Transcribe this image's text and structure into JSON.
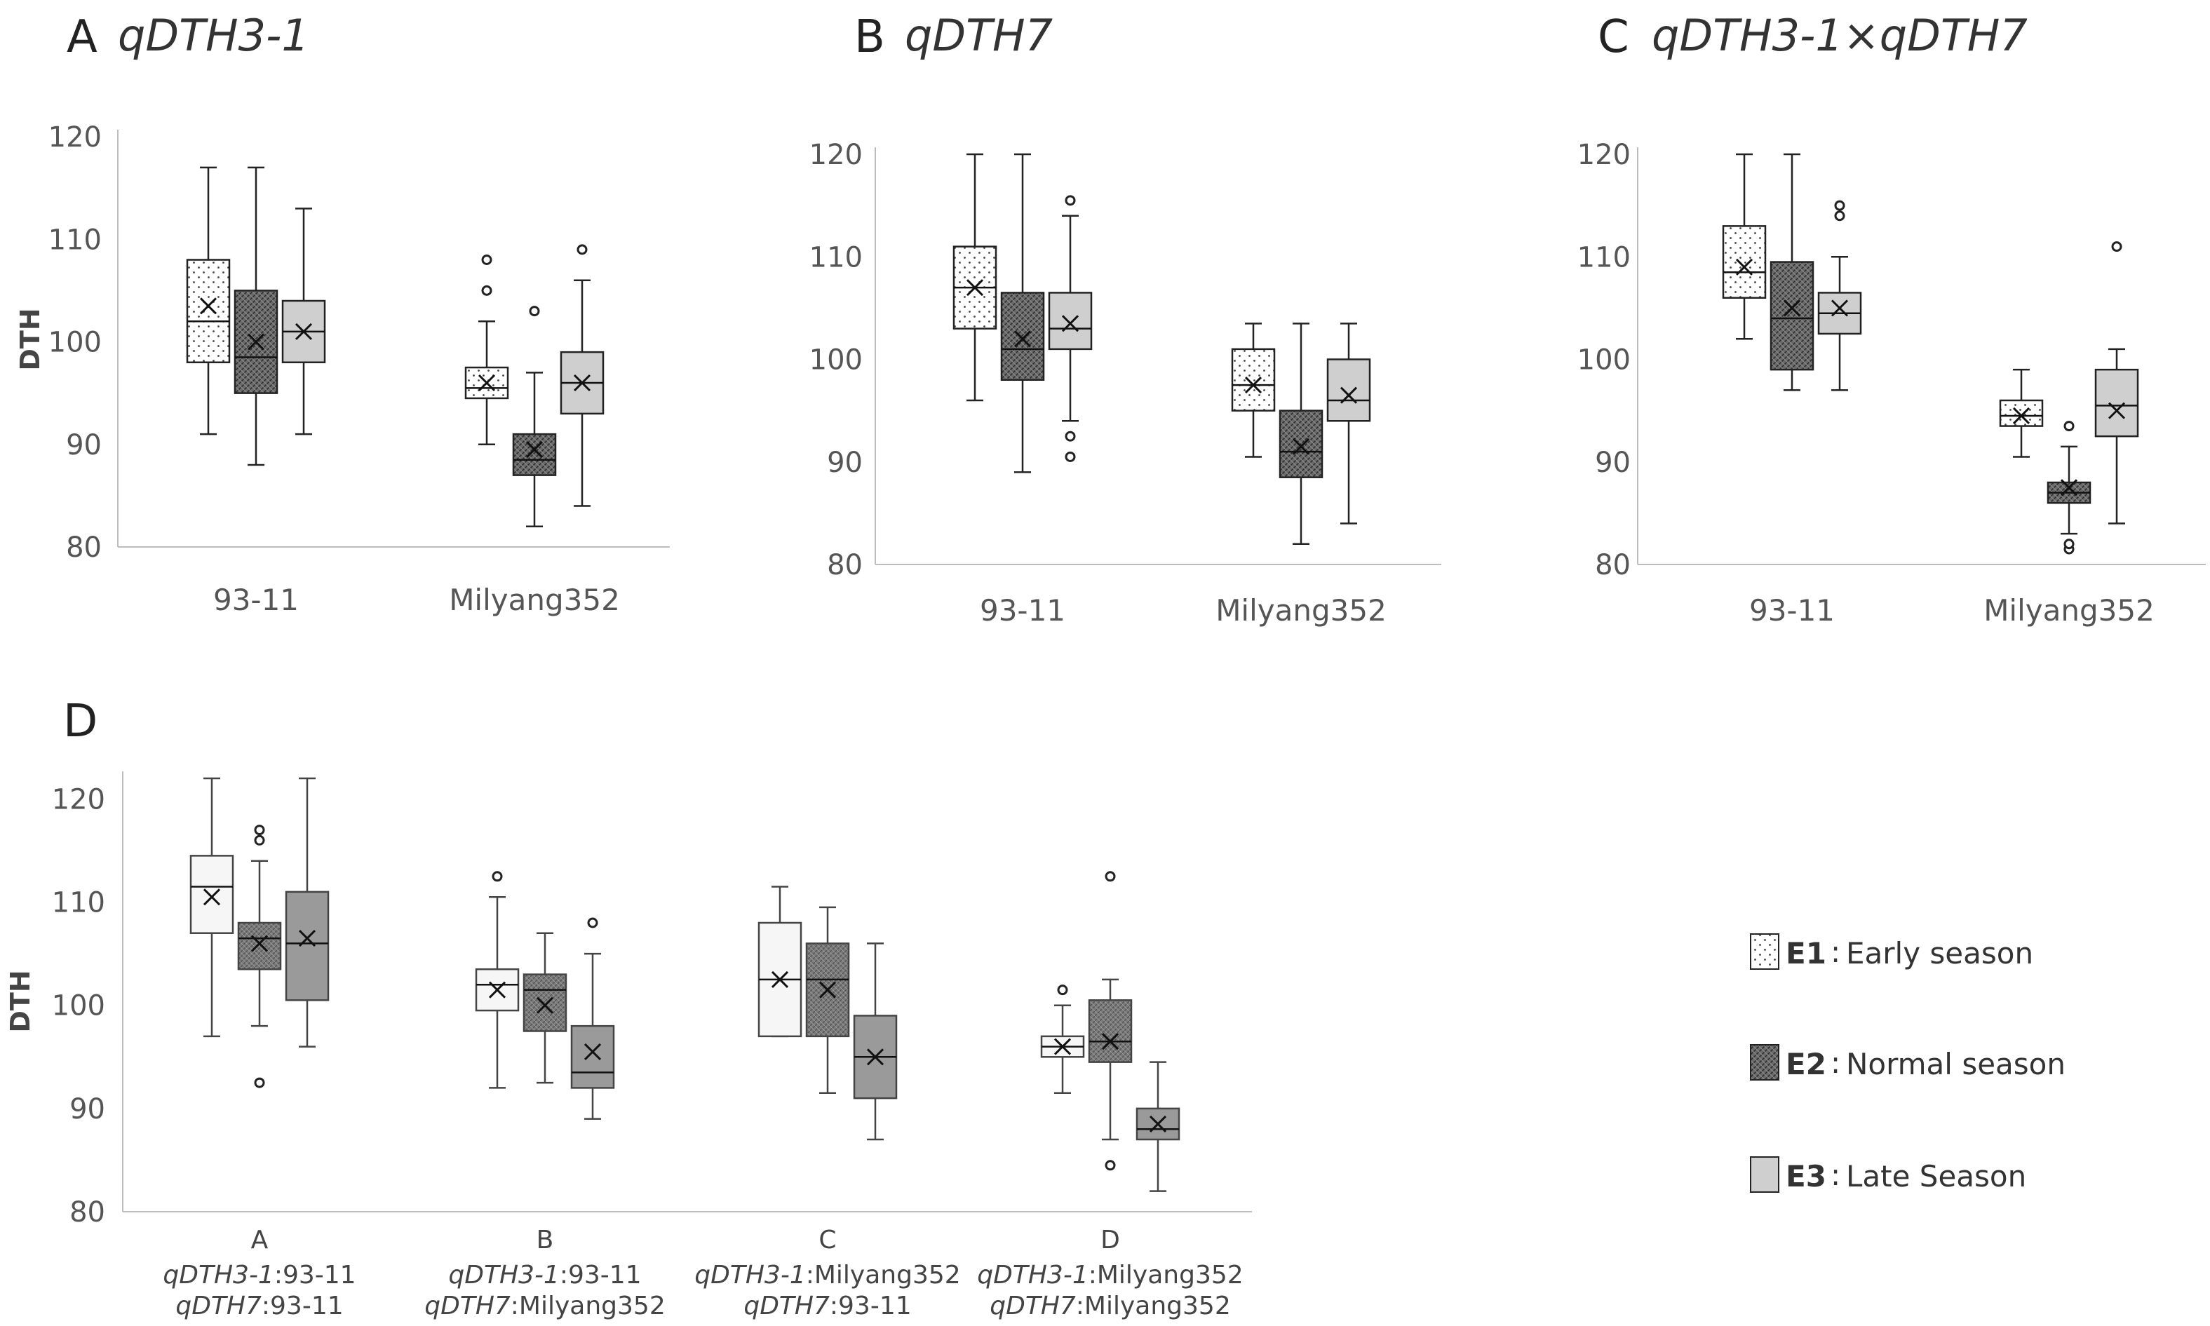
{
  "legend": [
    {
      "code": "E1",
      "sep": ":",
      "label": "Early season"
    },
    {
      "code": "E2",
      "sep": ":",
      "label": "Normal season"
    },
    {
      "code": "E3",
      "sep": ":",
      "label": "Late Season"
    }
  ],
  "chart_data": [
    {
      "type": "box",
      "panel": "A",
      "title": "qDTH3-1",
      "ylabel": "DTH",
      "ylim": [
        80,
        120
      ],
      "yticks": [
        80,
        90,
        100,
        110,
        120
      ],
      "grid": false,
      "categories": [
        "93-11",
        "Milyang352"
      ],
      "series": [
        {
          "name": "E1",
          "boxes": [
            {
              "min": 91,
              "q1": 98,
              "median": 102,
              "q3": 108,
              "max": 117,
              "mean": 103.5,
              "outliers": []
            },
            {
              "min": 90,
              "q1": 94.5,
              "median": 95.5,
              "q3": 97.5,
              "max": 102,
              "mean": 96,
              "outliers": [
                105,
                108
              ]
            }
          ]
        },
        {
          "name": "E2",
          "boxes": [
            {
              "min": 88,
              "q1": 95,
              "median": 98.5,
              "q3": 105,
              "max": 117,
              "mean": 100,
              "outliers": []
            },
            {
              "min": 82,
              "q1": 87,
              "median": 88.5,
              "q3": 91,
              "max": 97,
              "mean": 89.5,
              "outliers": [
                103
              ]
            }
          ]
        },
        {
          "name": "E3",
          "boxes": [
            {
              "min": 91,
              "q1": 98,
              "median": 101,
              "q3": 104,
              "max": 113,
              "mean": 101,
              "outliers": []
            },
            {
              "min": 84,
              "q1": 93,
              "median": 96,
              "q3": 99,
              "max": 106,
              "mean": 96,
              "outliers": [
                109
              ]
            }
          ]
        }
      ]
    },
    {
      "type": "box",
      "panel": "B",
      "title": "qDTH7",
      "ylabel": "",
      "ylim": [
        80,
        120
      ],
      "yticks": [
        80,
        90,
        100,
        110,
        120
      ],
      "grid": false,
      "categories": [
        "93-11",
        "Milyang352"
      ],
      "series": [
        {
          "name": "E1",
          "boxes": [
            {
              "min": 96,
              "q1": 103,
              "median": 107,
              "q3": 111,
              "max": 120,
              "mean": 107,
              "outliers": []
            },
            {
              "min": 90.5,
              "q1": 95,
              "median": 97.5,
              "q3": 101,
              "max": 103.5,
              "mean": 97.5,
              "outliers": []
            }
          ]
        },
        {
          "name": "E2",
          "boxes": [
            {
              "min": 89,
              "q1": 98,
              "median": 101,
              "q3": 106.5,
              "max": 120,
              "mean": 102,
              "outliers": []
            },
            {
              "min": 82,
              "q1": 88.5,
              "median": 91,
              "q3": 95,
              "max": 103.5,
              "mean": 91.5,
              "outliers": []
            }
          ]
        },
        {
          "name": "E3",
          "boxes": [
            {
              "min": 94,
              "q1": 101,
              "median": 103,
              "q3": 106.5,
              "max": 114,
              "mean": 103.5,
              "outliers": [
                90.5,
                92.5,
                115.5
              ]
            },
            {
              "min": 84,
              "q1": 94,
              "median": 96,
              "q3": 100,
              "max": 103.5,
              "mean": 96.5,
              "outliers": []
            }
          ]
        }
      ]
    },
    {
      "type": "box",
      "panel": "C",
      "title": "qDTH3-1×qDTH7",
      "ylabel": "",
      "ylim": [
        80,
        120
      ],
      "yticks": [
        80,
        90,
        100,
        110,
        120
      ],
      "grid": false,
      "categories": [
        "93-11",
        "Milyang352"
      ],
      "series": [
        {
          "name": "E1",
          "boxes": [
            {
              "min": 102,
              "q1": 106,
              "median": 108.5,
              "q3": 113,
              "max": 120,
              "mean": 109,
              "outliers": []
            },
            {
              "min": 90.5,
              "q1": 93.5,
              "median": 94.5,
              "q3": 96,
              "max": 99,
              "mean": 94.5,
              "outliers": []
            }
          ]
        },
        {
          "name": "E2",
          "boxes": [
            {
              "min": 97,
              "q1": 99,
              "median": 104,
              "q3": 109.5,
              "max": 120,
              "mean": 105,
              "outliers": []
            },
            {
              "min": 83,
              "q1": 86,
              "median": 87,
              "q3": 88,
              "max": 91.5,
              "mean": 87.5,
              "outliers": [
                81.5,
                82,
                93.5
              ]
            }
          ]
        },
        {
          "name": "E3",
          "boxes": [
            {
              "min": 97,
              "q1": 102.5,
              "median": 104.5,
              "q3": 106.5,
              "max": 110,
              "mean": 105,
              "outliers": [
                114,
                115
              ]
            },
            {
              "min": 84,
              "q1": 92.5,
              "median": 95.5,
              "q3": 99,
              "max": 101,
              "mean": 95,
              "outliers": [
                111
              ]
            }
          ]
        }
      ]
    },
    {
      "type": "box",
      "panel": "D",
      "title": "",
      "ylabel": "DTH",
      "ylim": [
        80,
        122
      ],
      "yticks": [
        80,
        90,
        100,
        110,
        120
      ],
      "grid": false,
      "categories": [
        "A",
        "B",
        "C",
        "D"
      ],
      "category_sublabels": [
        [
          {
            "allele": "qDTH3-1",
            "source": ":93-11"
          },
          {
            "allele": "qDTH7",
            "source": ":93-11"
          }
        ],
        [
          {
            "allele": "qDTH3-1",
            "source": ":93-11"
          },
          {
            "allele": "qDTH7",
            "source": ":Milyang352"
          }
        ],
        [
          {
            "allele": "qDTH3-1",
            "source": ":Milyang352"
          },
          {
            "allele": "qDTH7",
            "source": ":93-11"
          }
        ],
        [
          {
            "allele": "qDTH3-1",
            "source": ":Milyang352"
          },
          {
            "allele": "qDTH7",
            "source": ":Milyang352"
          }
        ]
      ],
      "series": [
        {
          "name": "E1",
          "boxes": [
            {
              "min": 97,
              "q1": 107,
              "median": 111.5,
              "q3": 114.5,
              "max": 122,
              "mean": 110.5,
              "outliers": []
            },
            {
              "min": 92,
              "q1": 99.5,
              "median": 102,
              "q3": 103.5,
              "max": 110.5,
              "mean": 101.5,
              "outliers": [
                112.5
              ]
            },
            {
              "min": 97,
              "q1": 97,
              "median": 102.5,
              "q3": 108,
              "max": 111.5,
              "mean": 102.5,
              "outliers": []
            },
            {
              "min": 91.5,
              "q1": 95,
              "median": 96,
              "q3": 97,
              "max": 100,
              "mean": 96,
              "outliers": [
                101.5
              ]
            }
          ]
        },
        {
          "name": "E2",
          "boxes": [
            {
              "min": 98,
              "q1": 103.5,
              "median": 106.5,
              "q3": 108,
              "max": 114,
              "mean": 106,
              "outliers": [
                92.5,
                116,
                117
              ]
            },
            {
              "min": 92.5,
              "q1": 97.5,
              "median": 101.5,
              "q3": 103,
              "max": 107,
              "mean": 100,
              "outliers": []
            },
            {
              "min": 91.5,
              "q1": 97,
              "median": 102.5,
              "q3": 106,
              "max": 109.5,
              "mean": 101.5,
              "outliers": []
            },
            {
              "min": 87,
              "q1": 94.5,
              "median": 96.5,
              "q3": 100.5,
              "max": 102.5,
              "mean": 96.5,
              "outliers": [
                84.5,
                112.5
              ]
            }
          ]
        },
        {
          "name": "E3",
          "boxes": [
            {
              "min": 96,
              "q1": 100.5,
              "median": 106,
              "q3": 111,
              "max": 122,
              "mean": 106.5,
              "outliers": []
            },
            {
              "min": 89,
              "q1": 92,
              "median": 93.5,
              "q3": 98,
              "max": 105,
              "mean": 95.5,
              "outliers": [
                108
              ]
            },
            {
              "min": 87,
              "q1": 91,
              "median": 95,
              "q3": 99,
              "max": 106,
              "mean": 95,
              "outliers": []
            },
            {
              "min": 82,
              "q1": 87,
              "median": 88,
              "q3": 90,
              "max": 94.5,
              "mean": 88.5,
              "outliers": []
            }
          ]
        }
      ]
    }
  ]
}
